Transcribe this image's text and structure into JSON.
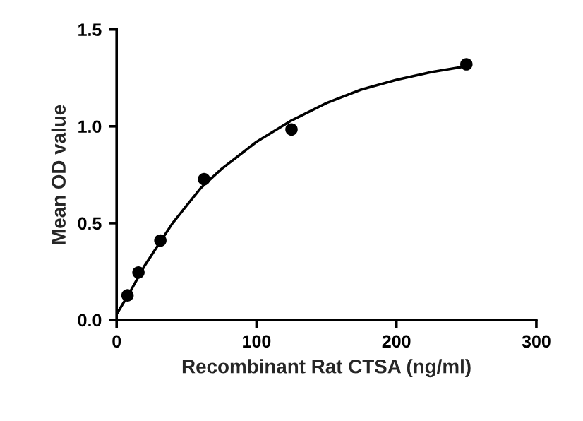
{
  "chart_data": {
    "type": "scatter",
    "xlabel": "Recombinant Rat CTSA (ng/ml)",
    "ylabel": "Mean OD value",
    "series": [
      {
        "color": "#000000",
        "marker": "circle",
        "x": [
          7.8,
          15.6,
          31.25,
          62.5,
          125,
          250
        ],
        "values": [
          0.127,
          0.245,
          0.41,
          0.727,
          0.984,
          1.32
        ]
      },
      {
        "type": "line",
        "color": "#000000",
        "marker": "none",
        "line_style": "solid",
        "x": [
          0,
          10,
          20,
          30,
          40,
          50,
          60,
          75,
          100,
          125,
          150,
          175,
          200,
          225,
          250
        ],
        "values": [
          0.03,
          0.15,
          0.28,
          0.39,
          0.5,
          0.59,
          0.68,
          0.78,
          0.92,
          1.03,
          1.12,
          1.19,
          1.24,
          1.28,
          1.31
        ]
      }
    ],
    "xlim": [
      0,
      300
    ],
    "xticks": [
      0,
      100,
      200,
      300
    ],
    "ylim": [
      0,
      1.5
    ],
    "yticks": [
      {
        "value": 0,
        "label": "0.0"
      },
      {
        "value": 0.5,
        "label": "0.5"
      },
      {
        "value": 1.0,
        "label": "1.0"
      },
      {
        "value": 1.5,
        "label": "1.5"
      }
    ],
    "grid": false,
    "legend": false
  }
}
